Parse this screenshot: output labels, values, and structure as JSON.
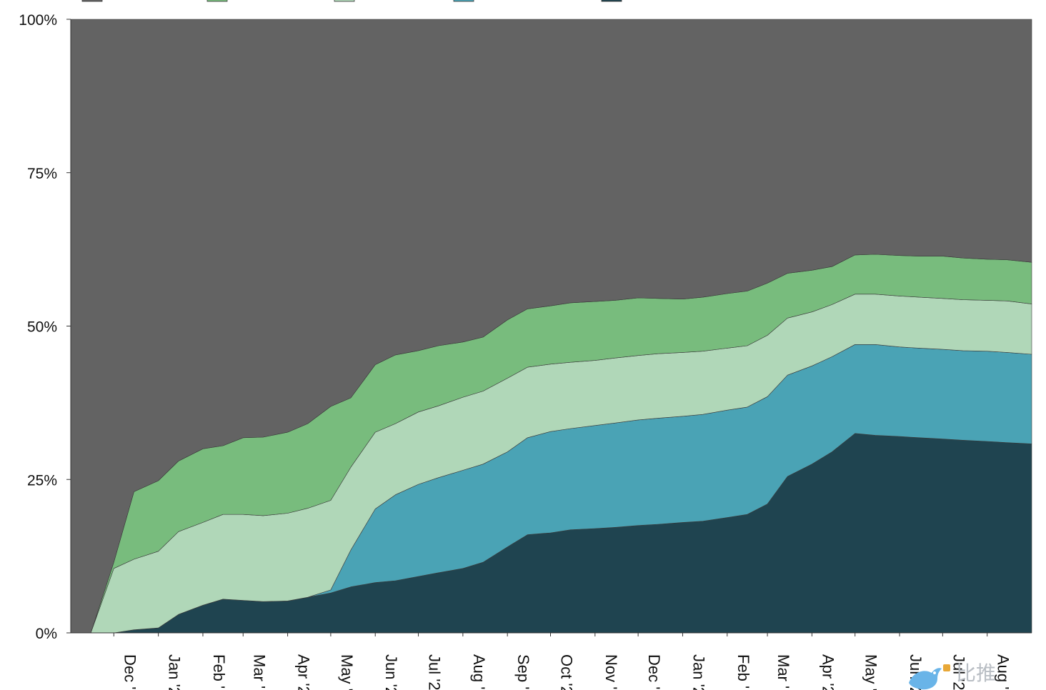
{
  "chart_data": {
    "type": "area",
    "stacked": "percent",
    "title": "",
    "xlabel": "",
    "ylabel": "",
    "ylim": [
      0,
      100
    ],
    "grid": false,
    "legend": "top-left",
    "y_ticks": [
      {
        "value": 0,
        "label": "0%"
      },
      {
        "value": 25,
        "label": "25%"
      },
      {
        "value": 50,
        "label": "50%"
      },
      {
        "value": 75,
        "label": "75%"
      },
      {
        "value": 100,
        "label": "100%"
      }
    ],
    "x_tick_labels": [
      "Dec '",
      "Jan '2",
      "Feb '",
      "Mar '",
      "Apr '2",
      "May '",
      "Jun '2",
      "Jul '2",
      "Aug '",
      "Sep '",
      "Oct '2",
      "Nov '",
      "Dec '",
      "Jan '2",
      "Feb '",
      "Mar '",
      "Apr '2",
      "May '",
      "Jun '2",
      "Jul '2",
      "Aug '"
    ],
    "x": [
      "2021-11-15",
      "2021-12-01",
      "2021-12-15",
      "2022-01-01",
      "2022-01-15",
      "2022-02-01",
      "2022-02-15",
      "2022-03-01",
      "2022-03-15",
      "2022-04-01",
      "2022-04-15",
      "2022-05-01",
      "2022-05-15",
      "2022-06-01",
      "2022-06-15",
      "2022-07-01",
      "2022-07-15",
      "2022-08-01",
      "2022-08-15",
      "2022-09-01",
      "2022-09-15",
      "2022-10-01",
      "2022-10-15",
      "2022-11-01",
      "2022-11-15",
      "2022-12-01",
      "2022-12-15",
      "2023-01-01",
      "2023-01-15",
      "2023-02-01",
      "2023-02-15",
      "2023-03-01",
      "2023-03-15",
      "2023-04-01",
      "2023-04-15",
      "2023-05-01",
      "2023-05-15",
      "2023-06-01",
      "2023-06-15",
      "2023-07-01",
      "2023-07-15",
      "2023-08-01",
      "2023-08-15",
      "2023-09-01"
    ],
    "series": [
      {
        "color": "#1f4450",
        "values": [
          0,
          0,
          0.5,
          0.8,
          3,
          4.5,
          5.5,
          5.3,
          5.1,
          5.2,
          5.8,
          6.5,
          7.5,
          8.2,
          8.5,
          9.2,
          9.8,
          10.5,
          11.5,
          14,
          16,
          16.3,
          16.8,
          17,
          17.2,
          17.5,
          17.7,
          18,
          18.2,
          18.8,
          19.3,
          21,
          25.5,
          27.5,
          29.5,
          32.5,
          32.2,
          32,
          31.8,
          31.6,
          31.4,
          31.2,
          31,
          30.8
        ]
      },
      {
        "color": "#4aa3b5",
        "values": [
          0,
          0,
          0,
          0,
          0,
          0,
          0,
          0,
          0,
          0,
          0,
          0.5,
          6,
          12,
          14,
          15,
          15.5,
          16,
          16,
          15.5,
          15.8,
          16.5,
          16.5,
          16.8,
          17,
          17.2,
          17.3,
          17.3,
          17.4,
          17.5,
          17.5,
          17.5,
          16.5,
          16,
          15.5,
          14.5,
          14.8,
          14.6,
          14.6,
          14.6,
          14.6,
          14.7,
          14.7,
          14.6
        ]
      },
      {
        "color": "#b0d7b8",
        "values": [
          0,
          10.5,
          11.5,
          12.5,
          13.5,
          13.5,
          13.8,
          14,
          14,
          14.3,
          14.5,
          14.6,
          13.5,
          12.5,
          11.6,
          11.8,
          11.7,
          11.9,
          11.9,
          12,
          11.5,
          11,
          10.8,
          10.6,
          10.6,
          10.5,
          10.5,
          10.4,
          10.3,
          10.1,
          10,
          10,
          9.3,
          8.8,
          8.5,
          8.2,
          8.2,
          8.3,
          8.3,
          8.3,
          8.3,
          8.3,
          8.4,
          8.2
        ]
      },
      {
        "color": "#78bc7d",
        "values": [
          0,
          1,
          11,
          11.5,
          11.5,
          12,
          11.2,
          12.5,
          12.8,
          13.2,
          13.8,
          15.3,
          11.3,
          11,
          11.2,
          10,
          9.8,
          9,
          8.8,
          9.5,
          9.5,
          9.5,
          9.7,
          9.6,
          9.4,
          9.4,
          9,
          8.7,
          8.8,
          8.9,
          8.9,
          8.5,
          7.3,
          6.8,
          6.2,
          6.4,
          6.5,
          6.6,
          6.7,
          6.9,
          6.8,
          6.7,
          6.7,
          6.8
        ]
      },
      {
        "color": "#636363",
        "values": [
          100,
          88.5,
          77,
          75.2,
          72,
          70,
          69.5,
          68.2,
          68.1,
          67.3,
          65.9,
          63.1,
          61.7,
          56.3,
          54.7,
          54,
          53.2,
          52.6,
          51.8,
          49,
          47.2,
          46.7,
          46.2,
          46,
          45.8,
          45.4,
          45.5,
          45.6,
          45.3,
          44.7,
          44.3,
          43,
          41.4,
          40.9,
          40.3,
          38.4,
          38.3,
          38.5,
          38.6,
          38.6,
          38.9,
          39.1,
          39.2,
          39.6
        ]
      }
    ]
  },
  "legend": {
    "swatches": [
      {
        "color": "#636363"
      },
      {
        "color": "#78bc7d"
      },
      {
        "color": "#b0d7b8"
      },
      {
        "color": "#4aa3b5"
      },
      {
        "color": "#1f4450"
      }
    ]
  },
  "watermark": {
    "text": "比推",
    "icon": "bird-logo-icon"
  }
}
